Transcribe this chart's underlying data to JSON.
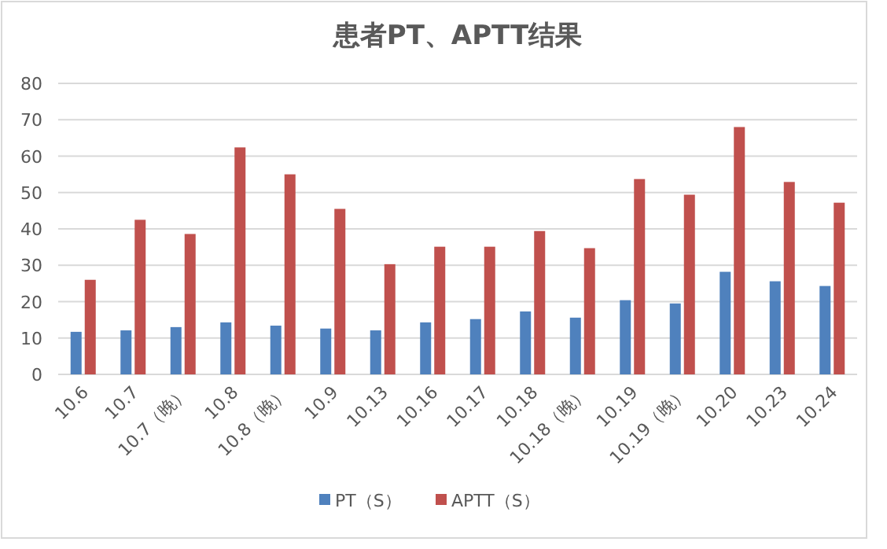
{
  "chart_data": {
    "type": "bar",
    "title": "患者PT、APTT结果",
    "categories": [
      "10.6",
      "10.7",
      "10.7（晚）",
      "10.8",
      "10.8（晚）",
      "10.9",
      "10.13",
      "10.16",
      "10.17",
      "10.18",
      "10.18（晚）",
      "10.19",
      "10.19（晚）",
      "10.20",
      "10.23",
      "10.24"
    ],
    "series": [
      {
        "name": "PT（S）",
        "color": "#4f81bd",
        "values": [
          11.7,
          12.1,
          13.0,
          14.3,
          13.4,
          12.6,
          12.1,
          14.3,
          15.2,
          17.3,
          15.6,
          20.4,
          19.5,
          28.2,
          25.6,
          24.3
        ]
      },
      {
        "name": "APTT（S）",
        "color": "#c0504d",
        "values": [
          26.0,
          42.5,
          38.6,
          62.4,
          55.0,
          45.5,
          30.3,
          35.1,
          35.1,
          39.4,
          34.7,
          53.7,
          49.4,
          68.0,
          52.9,
          47.2
        ]
      }
    ],
    "ylim": [
      0,
      80
    ],
    "yticks": [
      0,
      10,
      20,
      30,
      40,
      50,
      60,
      70,
      80
    ],
    "grid": "y",
    "legend": "bottom"
  }
}
